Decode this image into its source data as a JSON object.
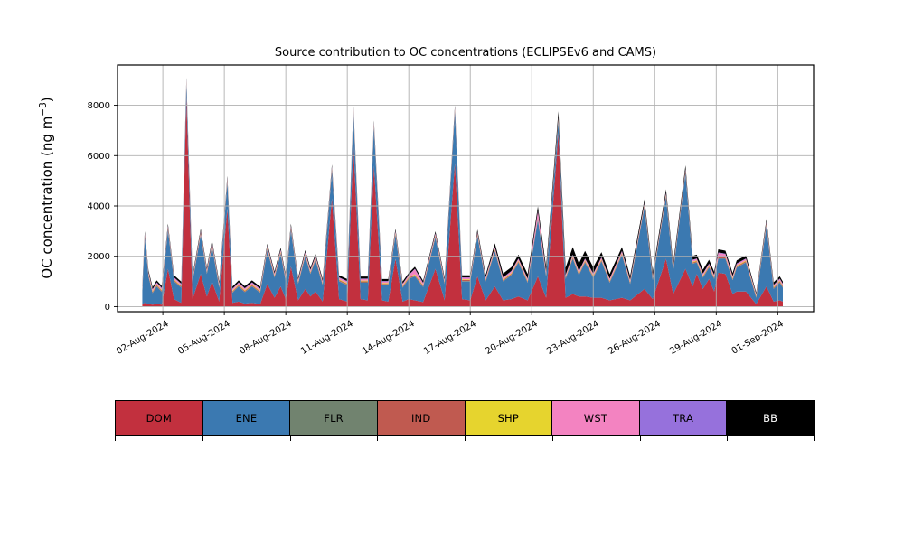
{
  "figure": {
    "background": "#ffffff"
  },
  "chart_data": {
    "type": "area",
    "stacked": true,
    "title": "Source contribution to OC concentrations (ECLIPSEv6 and CAMS)",
    "xlabel": "",
    "ylabel": "OC concentration (ng m⁻³)",
    "ylabel_parts": {
      "main": "OC concentration (ng m",
      "sup": "−3",
      "close": ")"
    },
    "units": "ng m-3",
    "grid": true,
    "grid_color": "#b0b0b0",
    "legend_position": "bottom strip (separate axis with color patches)",
    "ylim": [
      -200,
      9600
    ],
    "yticks": [
      0,
      2000,
      4000,
      6000,
      8000
    ],
    "ytick_labels": [
      "0",
      "2000",
      "4000",
      "6000",
      "8000"
    ],
    "x_unit": "days since 01-Aug-2024 00:00",
    "xlim_days": [
      -1.21,
      32.75
    ],
    "x_ticks_days": [
      1,
      4,
      7,
      10,
      13,
      16,
      19,
      22,
      25,
      28,
      31
    ],
    "x_ticklabels": [
      "02-Aug-2024",
      "05-Aug-2024",
      "08-Aug-2024",
      "11-Aug-2024",
      "14-Aug-2024",
      "17-Aug-2024",
      "20-Aug-2024",
      "23-Aug-2024",
      "26-Aug-2024",
      "29-Aug-2024",
      "01-Sep-2024"
    ],
    "stack_order": [
      "DOM",
      "ENE",
      "FLR",
      "IND",
      "SHP",
      "WST",
      "TRA",
      "BB"
    ],
    "colors": {
      "DOM": "#c2303e",
      "ENE": "#3b79b1",
      "FLR": "#71836f",
      "IND": "#c05a50",
      "SHP": "#e6d42e",
      "WST": "#f383c1",
      "TRA": "#9671dc",
      "BB": "#000000"
    },
    "constant_series": {
      "FLR": 15,
      "IND": 40,
      "SHP": 30,
      "TRA": 20
    },
    "series_breakpoints": {
      "columns": [
        "t_days",
        "DOM",
        "ENE",
        "WST",
        "BB"
      ],
      "rows": [
        [
          0.0,
          100,
          500,
          60,
          80
        ],
        [
          0.12,
          150,
          2600,
          60,
          80
        ],
        [
          0.3,
          100,
          1100,
          60,
          80
        ],
        [
          0.5,
          80,
          450,
          60,
          80
        ],
        [
          0.7,
          100,
          700,
          60,
          80
        ],
        [
          0.95,
          80,
          500,
          60,
          80
        ],
        [
          1.25,
          1500,
          1550,
          60,
          80
        ],
        [
          1.55,
          300,
          700,
          60,
          80
        ],
        [
          1.9,
          150,
          600,
          60,
          80
        ],
        [
          2.15,
          8300,
          550,
          60,
          80
        ],
        [
          2.45,
          300,
          700,
          60,
          80
        ],
        [
          2.85,
          1300,
          1550,
          60,
          80
        ],
        [
          3.15,
          400,
          900,
          60,
          80
        ],
        [
          3.4,
          1000,
          1400,
          60,
          80
        ],
        [
          3.75,
          200,
          550,
          60,
          80
        ],
        [
          4.15,
          3900,
          1050,
          60,
          80
        ],
        [
          4.4,
          150,
          400,
          60,
          80
        ],
        [
          4.7,
          200,
          600,
          60,
          80
        ],
        [
          5.0,
          120,
          450,
          60,
          80
        ],
        [
          5.35,
          150,
          650,
          60,
          80
        ],
        [
          5.75,
          100,
          450,
          60,
          80
        ],
        [
          6.1,
          900,
          1350,
          60,
          80
        ],
        [
          6.45,
          350,
          800,
          60,
          80
        ],
        [
          6.75,
          800,
          1300,
          60,
          80
        ],
        [
          7.0,
          300,
          700,
          60,
          80
        ],
        [
          7.25,
          1600,
          1450,
          60,
          80
        ],
        [
          7.6,
          250,
          650,
          60,
          80
        ],
        [
          7.95,
          700,
          1300,
          60,
          80
        ],
        [
          8.2,
          400,
          900,
          60,
          80
        ],
        [
          8.45,
          600,
          1250,
          60,
          80
        ],
        [
          8.8,
          200,
          650,
          60,
          80
        ],
        [
          9.25,
          4300,
          1100,
          60,
          80
        ],
        [
          9.6,
          300,
          700,
          60,
          80
        ],
        [
          10.0,
          200,
          650,
          60,
          80
        ],
        [
          10.3,
          6400,
          1350,
          60,
          80
        ],
        [
          10.65,
          300,
          650,
          60,
          80
        ],
        [
          11.0,
          250,
          700,
          60,
          80
        ],
        [
          11.3,
          5600,
          1550,
          60,
          80
        ],
        [
          11.7,
          250,
          600,
          60,
          80
        ],
        [
          12.0,
          200,
          650,
          60,
          80
        ],
        [
          12.35,
          1900,
          950,
          60,
          80
        ],
        [
          12.7,
          200,
          550,
          60,
          80
        ],
        [
          13.0,
          300,
          800,
          60,
          80
        ],
        [
          13.3,
          250,
          950,
          200,
          80
        ],
        [
          13.7,
          180,
          600,
          60,
          80
        ],
        [
          14.3,
          1500,
          1250,
          60,
          80
        ],
        [
          14.75,
          250,
          650,
          60,
          80
        ],
        [
          15.25,
          5700,
          2050,
          60,
          80
        ],
        [
          15.6,
          300,
          700,
          60,
          80
        ],
        [
          16.0,
          250,
          750,
          60,
          80
        ],
        [
          16.35,
          1200,
          1600,
          60,
          100
        ],
        [
          16.75,
          250,
          750,
          60,
          100
        ],
        [
          17.2,
          800,
          1400,
          60,
          150
        ],
        [
          17.6,
          250,
          750,
          60,
          150
        ],
        [
          18.0,
          300,
          950,
          60,
          150
        ],
        [
          18.35,
          400,
          1350,
          60,
          150
        ],
        [
          18.8,
          250,
          700,
          60,
          180
        ],
        [
          19.3,
          1200,
          2250,
          250,
          180
        ],
        [
          19.7,
          350,
          850,
          80,
          200
        ],
        [
          20.3,
          6900,
          450,
          60,
          250
        ],
        [
          20.65,
          350,
          750,
          60,
          280
        ],
        [
          21.0,
          500,
          1400,
          60,
          300
        ],
        [
          21.3,
          400,
          850,
          60,
          300
        ],
        [
          21.6,
          400,
          1350,
          60,
          300
        ],
        [
          22.0,
          350,
          800,
          60,
          250
        ],
        [
          22.4,
          350,
          1450,
          60,
          200
        ],
        [
          22.8,
          250,
          700,
          60,
          180
        ],
        [
          23.4,
          350,
          1700,
          60,
          150
        ],
        [
          23.8,
          250,
          650,
          60,
          150
        ],
        [
          24.5,
          700,
          3250,
          60,
          150
        ],
        [
          24.9,
          300,
          750,
          60,
          150
        ],
        [
          25.55,
          1900,
          2450,
          60,
          150
        ],
        [
          25.9,
          500,
          900,
          60,
          150
        ],
        [
          26.5,
          1500,
          3800,
          60,
          150
        ],
        [
          26.85,
          800,
          900,
          60,
          150
        ],
        [
          27.05,
          1300,
          450,
          60,
          150
        ],
        [
          27.35,
          700,
          450,
          60,
          150
        ],
        [
          27.65,
          1100,
          450,
          60,
          150
        ],
        [
          27.9,
          600,
          500,
          60,
          120
        ],
        [
          28.1,
          1350,
          550,
          150,
          120
        ],
        [
          28.45,
          1300,
          600,
          100,
          120
        ],
        [
          28.8,
          500,
          550,
          60,
          120
        ],
        [
          29.0,
          600,
          950,
          60,
          120
        ],
        [
          29.45,
          600,
          1150,
          60,
          120
        ],
        [
          29.95,
          100,
          250,
          40,
          60
        ],
        [
          30.45,
          800,
          2400,
          60,
          120
        ],
        [
          30.8,
          200,
          500,
          60,
          100
        ],
        [
          31.1,
          250,
          700,
          60,
          90
        ],
        [
          31.25,
          200,
          550,
          60,
          80
        ]
      ]
    }
  },
  "legend": {
    "items": [
      {
        "label": "DOM",
        "color": "#c2303e",
        "text_color": "#000000"
      },
      {
        "label": "ENE",
        "color": "#3b79b1",
        "text_color": "#000000"
      },
      {
        "label": "FLR",
        "color": "#71836f",
        "text_color": "#000000"
      },
      {
        "label": "IND",
        "color": "#c05a50",
        "text_color": "#000000"
      },
      {
        "label": "SHP",
        "color": "#e6d42e",
        "text_color": "#000000"
      },
      {
        "label": "WST",
        "color": "#f383c1",
        "text_color": "#000000"
      },
      {
        "label": "TRA",
        "color": "#9671dc",
        "text_color": "#000000"
      },
      {
        "label": "BB",
        "color": "#000000",
        "text_color": "#ffffff"
      }
    ]
  }
}
